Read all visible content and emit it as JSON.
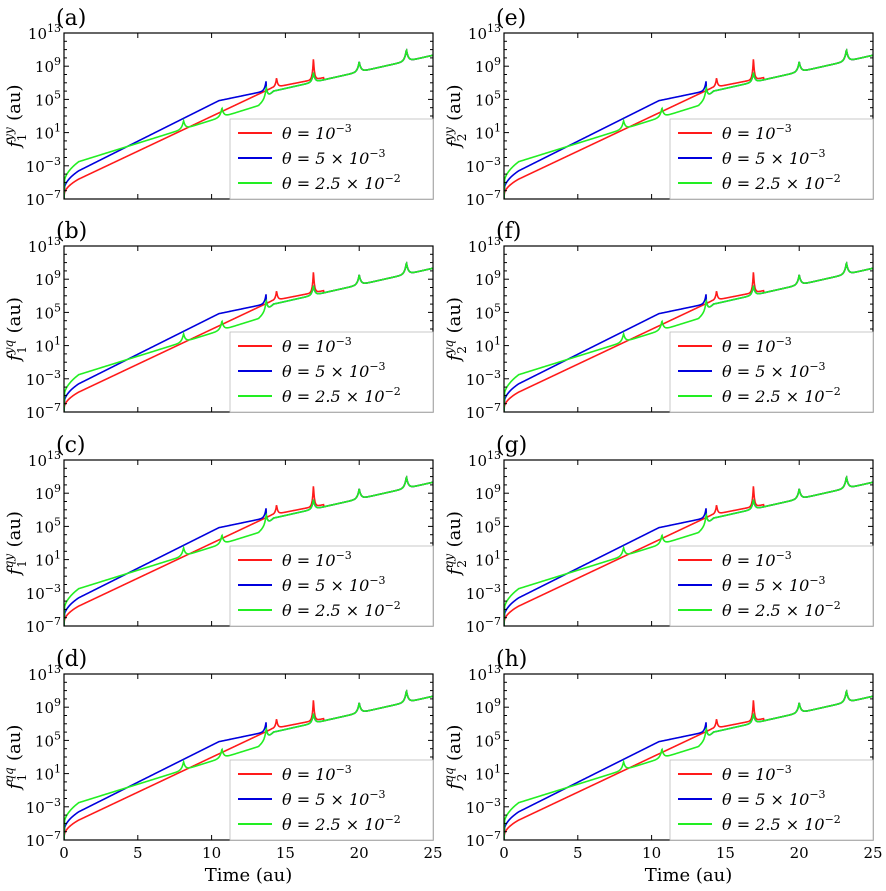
{
  "figure": {
    "xlabel": "Time (au)",
    "legend_location": "lower-right",
    "series_colors": [
      "#ff1a1a",
      "#0000dd",
      "#22ee22"
    ]
  },
  "chart_data": [
    {
      "panel": "(a)",
      "type": "line",
      "ylabel": "f_1^{yy} (au)",
      "yscale": "log",
      "xlim": [
        0,
        25
      ],
      "ylim": [
        1e-07,
        10000000000000.0
      ],
      "xticks": [
        "0",
        "5",
        "10",
        "15",
        "20",
        "25"
      ],
      "yticks": [
        "10^-7",
        "10^-3",
        "10^1",
        "10^5",
        "10^9",
        "10^13"
      ],
      "grid": false,
      "series": [
        {
          "name": "θ = 10^-3",
          "color": "#ff1a1a"
        },
        {
          "name": "θ = 5 × 10^-3",
          "color": "#0000dd"
        },
        {
          "name": "θ = 2.5 × 10^-2",
          "color": "#22ee22"
        }
      ]
    },
    {
      "panel": "(b)",
      "type": "line",
      "ylabel": "f_1^{yq} (au)",
      "yscale": "log",
      "xlim": [
        0,
        25
      ],
      "ylim": [
        1e-07,
        10000000000000.0
      ],
      "xticks": [
        "0",
        "5",
        "10",
        "15",
        "20",
        "25"
      ],
      "yticks": [
        "10^-7",
        "10^-3",
        "10^1",
        "10^5",
        "10^9",
        "10^13"
      ],
      "grid": false,
      "series": [
        {
          "name": "θ = 10^-3",
          "color": "#ff1a1a"
        },
        {
          "name": "θ = 5 × 10^-3",
          "color": "#0000dd"
        },
        {
          "name": "θ = 2.5 × 10^-2",
          "color": "#22ee22"
        }
      ]
    },
    {
      "panel": "(c)",
      "type": "line",
      "ylabel": "f_1^{qy} (au)",
      "yscale": "log",
      "xlim": [
        0,
        25
      ],
      "ylim": [
        1e-07,
        10000000000000.0
      ],
      "xticks": [
        "0",
        "5",
        "10",
        "15",
        "20",
        "25"
      ],
      "yticks": [
        "10^-7",
        "10^-3",
        "10^1",
        "10^5",
        "10^9",
        "10^13"
      ],
      "grid": false,
      "series": [
        {
          "name": "θ = 10^-3",
          "color": "#ff1a1a"
        },
        {
          "name": "θ = 5 × 10^-3",
          "color": "#0000dd"
        },
        {
          "name": "θ = 2.5 × 10^-2",
          "color": "#22ee22"
        }
      ]
    },
    {
      "panel": "(d)",
      "type": "line",
      "ylabel": "f_1^{qq} (au)",
      "yscale": "log",
      "xlim": [
        0,
        25
      ],
      "ylim": [
        1e-07,
        10000000000000.0
      ],
      "xticks": [
        "0",
        "5",
        "10",
        "15",
        "20",
        "25"
      ],
      "yticks": [
        "10^-7",
        "10^-3",
        "10^1",
        "10^5",
        "10^9",
        "10^13"
      ],
      "grid": false,
      "series": [
        {
          "name": "θ = 10^-3",
          "color": "#ff1a1a"
        },
        {
          "name": "θ = 5 × 10^-3",
          "color": "#0000dd"
        },
        {
          "name": "θ = 2.5 × 10^-2",
          "color": "#22ee22"
        }
      ]
    },
    {
      "panel": "(e)",
      "type": "line",
      "ylabel": "f_2^{yy} (au)",
      "yscale": "log",
      "xlim": [
        0,
        25
      ],
      "ylim": [
        1e-07,
        10000000000000.0
      ],
      "xticks": [
        "0",
        "5",
        "10",
        "15",
        "20",
        "25"
      ],
      "yticks": [
        "10^-7",
        "10^-3",
        "10^1",
        "10^5",
        "10^9",
        "10^13"
      ],
      "grid": false,
      "series": [
        {
          "name": "θ = 10^-3",
          "color": "#ff1a1a"
        },
        {
          "name": "θ = 5 × 10^-3",
          "color": "#0000dd"
        },
        {
          "name": "θ = 2.5 × 10^-2",
          "color": "#22ee22"
        }
      ]
    },
    {
      "panel": "(f)",
      "type": "line",
      "ylabel": "f_2^{yq} (au)",
      "yscale": "log",
      "xlim": [
        0,
        25
      ],
      "ylim": [
        1e-07,
        10000000000000.0
      ],
      "xticks": [
        "0",
        "5",
        "10",
        "15",
        "20",
        "25"
      ],
      "yticks": [
        "10^-7",
        "10^-3",
        "10^1",
        "10^5",
        "10^9",
        "10^13"
      ],
      "grid": false,
      "series": [
        {
          "name": "θ = 10^-3",
          "color": "#ff1a1a"
        },
        {
          "name": "θ = 5 × 10^-3",
          "color": "#0000dd"
        },
        {
          "name": "θ = 2.5 × 10^-2",
          "color": "#22ee22"
        }
      ]
    },
    {
      "panel": "(g)",
      "type": "line",
      "ylabel": "f_2^{qy} (au)",
      "yscale": "log",
      "xlim": [
        0,
        25
      ],
      "ylim": [
        1e-07,
        10000000000000.0
      ],
      "xticks": [
        "0",
        "5",
        "10",
        "15",
        "20",
        "25"
      ],
      "yticks": [
        "10^-7",
        "10^-3",
        "10^1",
        "10^5",
        "10^9",
        "10^13"
      ],
      "grid": false,
      "series": [
        {
          "name": "θ = 10^-3",
          "color": "#ff1a1a"
        },
        {
          "name": "θ = 5 × 10^-3",
          "color": "#0000dd"
        },
        {
          "name": "θ = 2.5 × 10^-2",
          "color": "#22ee22"
        }
      ]
    },
    {
      "panel": "(h)",
      "type": "line",
      "ylabel": "f_2^{qq} (au)",
      "yscale": "log",
      "xlim": [
        0,
        25
      ],
      "ylim": [
        1e-07,
        10000000000000.0
      ],
      "xticks": [
        "0",
        "5",
        "10",
        "15",
        "20",
        "25"
      ],
      "yticks": [
        "10^-7",
        "10^-3",
        "10^1",
        "10^5",
        "10^9",
        "10^13"
      ],
      "grid": false,
      "series": [
        {
          "name": "θ = 10^-3",
          "color": "#ff1a1a"
        },
        {
          "name": "θ = 5 × 10^-3",
          "color": "#0000dd"
        },
        {
          "name": "θ = 2.5 × 10^-2",
          "color": "#22ee22"
        }
      ]
    }
  ]
}
